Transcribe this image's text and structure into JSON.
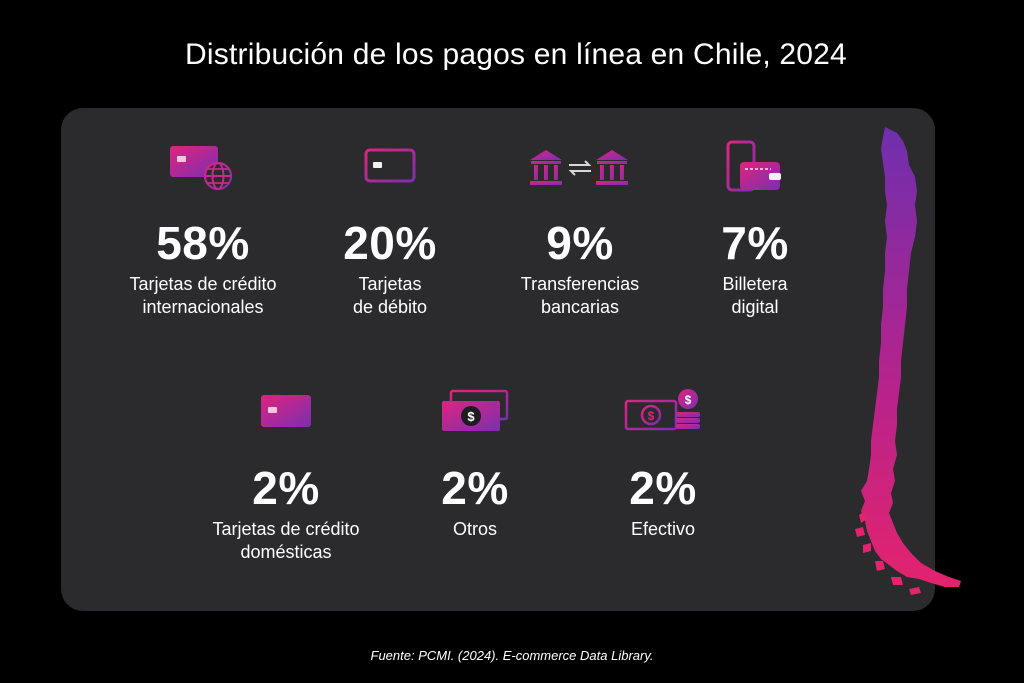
{
  "title": "Distribución de los pagos en línea en Chile, 2024",
  "source": "Fuente: PCMI. (2024). E-commerce Data Library.",
  "colors": {
    "background": "#000000",
    "panel": "#2b2a2c",
    "gradient_start": "#e0237f",
    "gradient_end": "#7a2fb0"
  },
  "chart_data": {
    "type": "table",
    "title": "Distribución de los pagos en línea en Chile, 2024",
    "unit": "%",
    "items": [
      {
        "value": 58,
        "display": "58%",
        "label_lines": [
          "Tarjetas de crédito",
          "internacionales"
        ],
        "icon": "credit-card-globe-icon"
      },
      {
        "value": 20,
        "display": "20%",
        "label_lines": [
          "Tarjetas",
          "de débito"
        ],
        "icon": "debit-card-icon"
      },
      {
        "value": 9,
        "display": "9%",
        "label_lines": [
          "Transferencias",
          "bancarias"
        ],
        "icon": "bank-transfer-icon"
      },
      {
        "value": 7,
        "display": "7%",
        "label_lines": [
          "Billetera",
          "digital"
        ],
        "icon": "digital-wallet-icon"
      },
      {
        "value": 2,
        "display": "2%",
        "label_lines": [
          "Tarjetas de crédito",
          "domésticas"
        ],
        "icon": "credit-card-icon"
      },
      {
        "value": 2,
        "display": "2%",
        "label_lines": [
          "Otros"
        ],
        "icon": "banknotes-icon"
      },
      {
        "value": 2,
        "display": "2%",
        "label_lines": [
          "Efectivo"
        ],
        "icon": "cash-coins-icon"
      }
    ]
  }
}
